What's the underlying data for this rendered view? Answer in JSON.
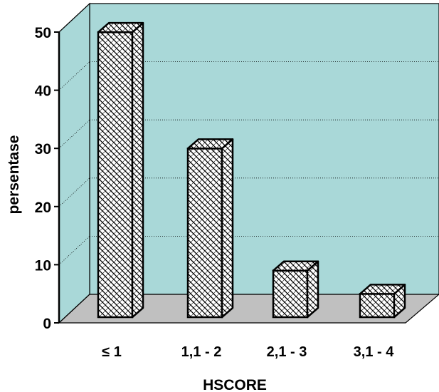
{
  "chart_data": {
    "type": "bar",
    "style": "3d",
    "categories": [
      "≤ 1",
      "1,1 - 2",
      "2,1 - 3",
      "3,1 - 4"
    ],
    "values": [
      49,
      29,
      8,
      4
    ],
    "xlabel": "HSCORE",
    "ylabel": "persentase",
    "ylim": [
      0,
      50
    ],
    "yticks": [
      0,
      10,
      20,
      30,
      40,
      50
    ],
    "grid": true,
    "colors": {
      "back_wall": "#a9d8d8",
      "floor": "#c0c0c0",
      "bar_face": "#ffffff",
      "bar_hatch": "#000000",
      "gridline": "#000000"
    }
  }
}
